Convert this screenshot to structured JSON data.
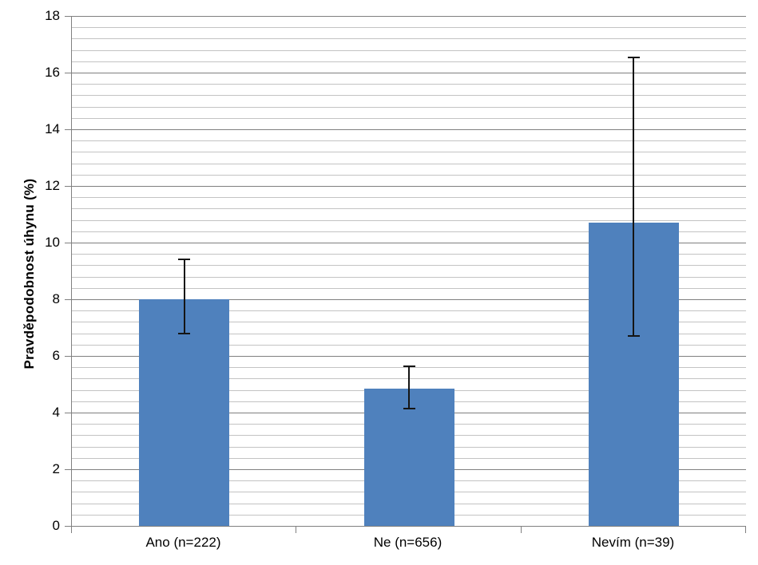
{
  "figure": {
    "background_color": "#ffffff"
  },
  "chart_data": {
    "type": "bar",
    "title": "",
    "xlabel": "",
    "ylabel": "Pravděpodobnost úhynu (%)",
    "categories": [
      "Ano (n=222)",
      "Ne (n=656)",
      "Nevím (n=39)"
    ],
    "values": [
      8.0,
      4.85,
      10.7
    ],
    "error_bars": {
      "low": [
        6.8,
        4.15,
        6.7
      ],
      "high": [
        9.45,
        5.65,
        16.55
      ]
    },
    "ylim": [
      0,
      18
    ],
    "y_major_unit": 2,
    "y_minor_unit": 0.4,
    "y_tick_labels": [
      "0",
      "2",
      "4",
      "6",
      "8",
      "10",
      "12",
      "14",
      "16",
      "18"
    ],
    "grid": "horizontal major+minor",
    "legend": "none",
    "gap_width_ratio": 2.5,
    "colors": {
      "bar_fill": "#4f81bd",
      "major_gridline": "#7f7f7f",
      "minor_gridline": "#c3c3c3",
      "axis_line": "#808080",
      "error_bar": "#151515",
      "text": "#000000"
    }
  }
}
